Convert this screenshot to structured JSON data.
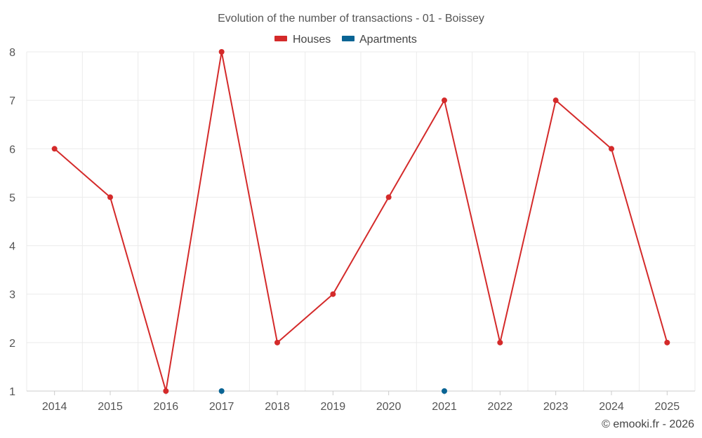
{
  "chart_data": {
    "type": "line",
    "title": "Evolution of the number of transactions - 01 - Boissey",
    "categories": [
      "2014",
      "2015",
      "2016",
      "2017",
      "2018",
      "2019",
      "2020",
      "2021",
      "2022",
      "2023",
      "2024",
      "2025"
    ],
    "series": [
      {
        "name": "Houses",
        "color": "#d42a2a",
        "values": [
          6,
          5,
          1,
          8,
          2,
          3,
          5,
          7,
          2,
          7,
          6,
          2
        ]
      },
      {
        "name": "Apartments",
        "color": "#0a6494",
        "values": [
          null,
          null,
          null,
          1,
          null,
          null,
          null,
          1,
          null,
          null,
          null,
          null
        ]
      }
    ],
    "ylim": [
      1,
      8
    ],
    "yticks": [
      1,
      2,
      3,
      4,
      5,
      6,
      7,
      8
    ],
    "legend_position": "top-center",
    "grid": true
  },
  "credit": "© emooki.fr - 2026"
}
